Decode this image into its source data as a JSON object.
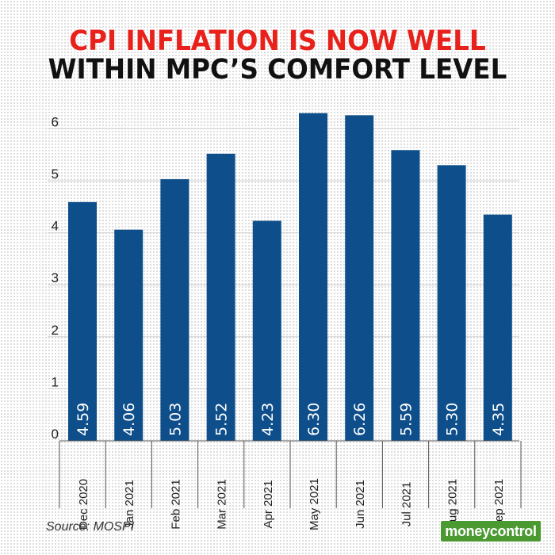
{
  "title_line1": "CPI INFLATION IS NOW WELL",
  "title_line2": "WITHIN MPC’S COMFORT LEVEL",
  "source": "Source: MOSPI",
  "logo_text": "moneycontrol",
  "colors": {
    "title_accent": "#e8211b",
    "bar": "#0e4f8b",
    "logo_bg": "#4a9a31"
  },
  "chart_data": {
    "type": "bar",
    "categories": [
      "Dec 2020",
      "Jan 2021",
      "Feb 2021",
      "Mar 2021",
      "Apr 2021",
      "May 2021",
      "Jun 2021",
      "Jul 2021",
      "Aug 2021",
      "Sep 2021"
    ],
    "values": [
      4.59,
      4.06,
      5.03,
      5.52,
      4.23,
      6.3,
      6.26,
      5.59,
      5.3,
      4.35
    ],
    "value_labels": [
      "4.59",
      "4.06",
      "5.03",
      "5.52",
      "4.23",
      "6.30",
      "6.26",
      "5.59",
      "5.30",
      "4.35"
    ],
    "yticks": [
      0,
      1,
      2,
      3,
      4,
      5,
      6
    ],
    "ylim": [
      0,
      6.6
    ],
    "xlabel": "",
    "ylabel": "",
    "grid": true,
    "legend": "none"
  }
}
